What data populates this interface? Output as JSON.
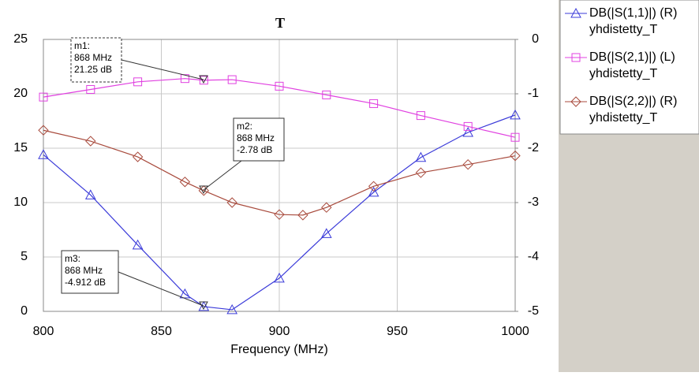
{
  "chart_data": {
    "type": "line",
    "title": "T",
    "x_label": "Frequency (MHz)",
    "xlim": [
      800,
      1000
    ],
    "xticks": [
      800,
      850,
      900,
      950,
      1000
    ],
    "ylim": [
      0,
      25
    ],
    "yticks": [
      0,
      5,
      10,
      15,
      20,
      25
    ],
    "y2lim": [
      -5,
      0
    ],
    "y2ticks": [
      0,
      -1,
      -2,
      -3,
      -4,
      -5
    ],
    "grid": true,
    "legend": "right",
    "series": [
      {
        "name": "DB(|S(1,1)|) (R)",
        "source": "yhdistetty_T",
        "color": "#3b3bd9",
        "marker": "triangle",
        "axis": "y2",
        "x": [
          800,
          820,
          840,
          860,
          868,
          880,
          900,
          920,
          940,
          960,
          980,
          1000
        ],
        "values": [
          -2.12,
          -2.86,
          -3.78,
          -4.68,
          -4.912,
          -4.97,
          -4.39,
          -3.57,
          -2.81,
          -2.17,
          -1.71,
          -1.39
        ]
      },
      {
        "name": "DB(|S(2,1)|) (L)",
        "source": "yhdistetty_T",
        "color": "#e040e0",
        "marker": "square",
        "axis": "y",
        "x": [
          800,
          820,
          840,
          860,
          868,
          880,
          900,
          920,
          940,
          960,
          980,
          1000
        ],
        "values": [
          19.7,
          20.4,
          21.1,
          21.4,
          21.25,
          21.3,
          20.7,
          19.9,
          19.1,
          18.0,
          17.0,
          16.0
        ]
      },
      {
        "name": "DB(|S(2,2)|) (R)",
        "source": "yhdistetty_T",
        "color": "#a84a3c",
        "marker": "diamond",
        "axis": "y2",
        "x": [
          800,
          820,
          840,
          860,
          868,
          880,
          900,
          910,
          920,
          940,
          960,
          980,
          1000
        ],
        "values": [
          -1.67,
          -1.87,
          -2.16,
          -2.62,
          -2.78,
          -3.0,
          -3.22,
          -3.23,
          -3.09,
          -2.7,
          -2.45,
          -2.3,
          -2.14
        ]
      }
    ],
    "annotations": [
      {
        "name": "m1:",
        "x_label": "868 MHz",
        "value_label": "21.25 dB"
      },
      {
        "name": "m2:",
        "x_label": "868 MHz",
        "value_label": "-2.78 dB"
      },
      {
        "name": "m3:",
        "x_label": "868 MHz",
        "value_label": "-4.912 dB"
      }
    ]
  }
}
